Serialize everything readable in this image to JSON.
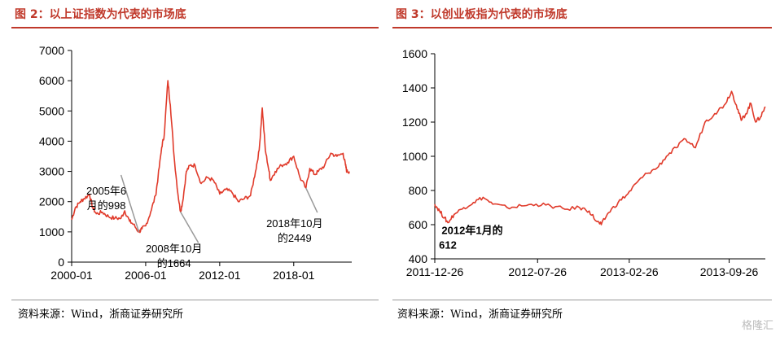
{
  "figure_left": {
    "title": "图 2：以上证指数为代表的市场底",
    "source": "资料来源：Wind，浙商证券研究所"
  },
  "figure_right": {
    "title": "图 3：以创业板指为代表的市场底",
    "source": "资料来源：Wind，浙商证券研究所"
  },
  "watermark": "格隆汇",
  "colors": {
    "series": "#e03a2a",
    "title": "#c0392b",
    "axis": "#000000",
    "leader": "#999999"
  },
  "chart_data": [
    {
      "type": "line",
      "title": "",
      "xlabel": "",
      "ylabel": "",
      "xlim": [
        2000.0,
        2022.7
      ],
      "ylim": [
        0,
        7000
      ],
      "x_ticks": [
        {
          "x": 2000.0,
          "label": "2000-01"
        },
        {
          "x": 2006.0,
          "label": "2006-01"
        },
        {
          "x": 2012.0,
          "label": "2012-01"
        },
        {
          "x": 2018.0,
          "label": "2018-01"
        }
      ],
      "y_ticks": [
        0,
        1000,
        2000,
        3000,
        4000,
        5000,
        6000,
        7000
      ],
      "grid": false,
      "series": [
        {
          "x": [
            2000.0,
            2000.3,
            2000.7,
            2001.0,
            2001.45,
            2001.7,
            2002.0,
            2002.5,
            2003.0,
            2003.5,
            2004.0,
            2004.3,
            2004.7,
            2005.0,
            2005.45,
            2005.7,
            2006.0,
            2006.4,
            2006.8,
            2007.0,
            2007.3,
            2007.5,
            2007.8,
            2008.0,
            2008.3,
            2008.6,
            2008.82,
            2009.0,
            2009.3,
            2009.6,
            2010.0,
            2010.5,
            2011.0,
            2011.5,
            2012.0,
            2012.5,
            2013.0,
            2013.5,
            2014.0,
            2014.5,
            2014.9,
            2015.2,
            2015.45,
            2015.7,
            2016.0,
            2016.1,
            2016.5,
            2017.0,
            2017.5,
            2018.0,
            2018.5,
            2018.99,
            2019.3,
            2019.7,
            2020.0,
            2020.5,
            2021.0,
            2021.5,
            2022.0,
            2022.2,
            2022.3,
            2022.5
          ],
          "values": [
            1400,
            1800,
            2000,
            2100,
            2240,
            1800,
            1600,
            1650,
            1500,
            1450,
            1450,
            1700,
            1350,
            1250,
            998,
            1100,
            1200,
            1650,
            2200,
            2800,
            3800,
            4200,
            6000,
            5200,
            3500,
            2300,
            1664,
            2000,
            3000,
            3200,
            3200,
            2600,
            2800,
            2700,
            2250,
            2400,
            2300,
            2000,
            2100,
            2200,
            3000,
            3700,
            5100,
            3700,
            3000,
            2700,
            3000,
            3200,
            3300,
            3500,
            2800,
            2449,
            3100,
            2900,
            3000,
            3200,
            3600,
            3500,
            3600,
            3200,
            3000,
            3000
          ]
        }
      ],
      "annotations": [
        {
          "text_line1": "2005年6",
          "text_line2": "月的998",
          "x": 2005.45,
          "y": 998
        },
        {
          "text_line1": "2008年10月",
          "text_line2": "的1664",
          "x": 2008.82,
          "y": 1664
        },
        {
          "text_line1": "2018年10月",
          "text_line2": "的2449",
          "x": 2018.99,
          "y": 2449
        }
      ]
    },
    {
      "type": "line",
      "title": "",
      "xlabel": "",
      "ylabel": "",
      "x_scale": "days since 2011-12-26",
      "xlim": [
        0,
        685
      ],
      "ylim": [
        400,
        1600
      ],
      "x_ticks": [
        {
          "x": 0,
          "label": "2011-12-26"
        },
        {
          "x": 213,
          "label": "2012-07-26"
        },
        {
          "x": 403,
          "label": "2013-02-26"
        },
        {
          "x": 610,
          "label": "2013-09-26"
        }
      ],
      "y_ticks": [
        400,
        600,
        800,
        1000,
        1200,
        1400,
        1600
      ],
      "grid": false,
      "series": [
        {
          "x": [
            0,
            10,
            20,
            27,
            40,
            60,
            80,
            100,
            120,
            150,
            180,
            210,
            240,
            270,
            300,
            320,
            335,
            345,
            360,
            380,
            400,
            420,
            440,
            460,
            480,
            500,
            520,
            540,
            560,
            580,
            600,
            615,
            625,
            635,
            645,
            655,
            665,
            675,
            685
          ],
          "values": [
            720,
            680,
            640,
            612,
            660,
            700,
            730,
            760,
            720,
            700,
            710,
            720,
            710,
            690,
            700,
            680,
            620,
            600,
            670,
            730,
            780,
            850,
            900,
            930,
            1000,
            1050,
            1100,
            1050,
            1200,
            1250,
            1300,
            1380,
            1300,
            1210,
            1250,
            1310,
            1200,
            1230,
            1290
          ]
        }
      ],
      "annotations": [
        {
          "text_line1": "2012年1月的",
          "text_line2": "612",
          "x": 27,
          "y": 612
        }
      ]
    }
  ]
}
